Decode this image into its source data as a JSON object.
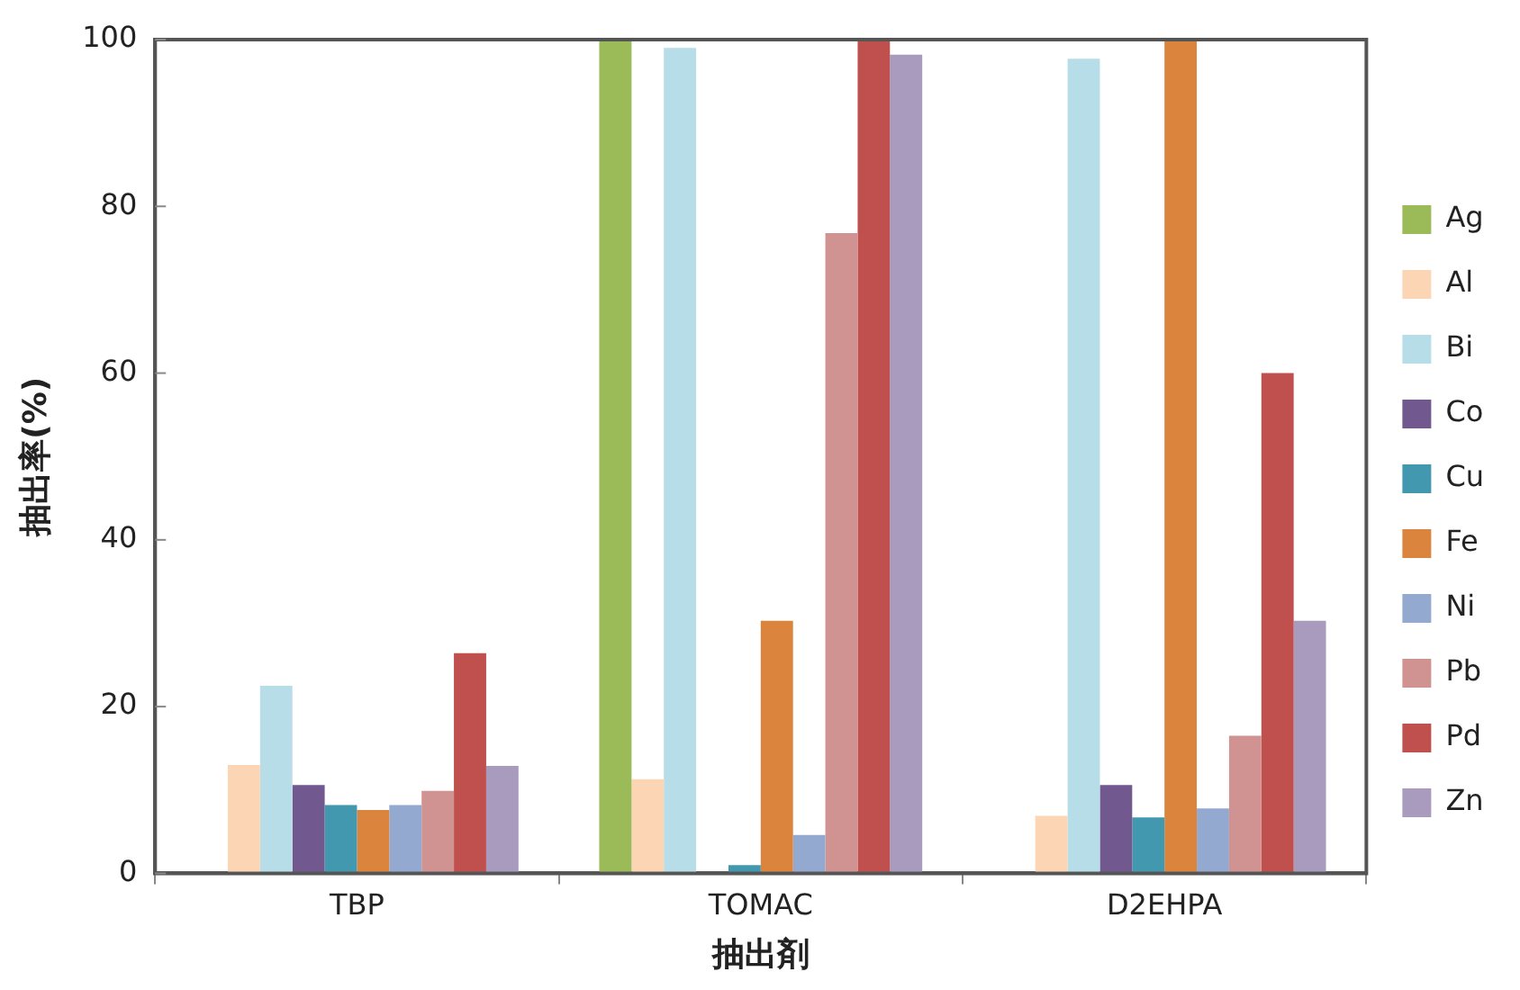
{
  "chart_data": {
    "type": "bar",
    "xlabel": "抽出剤",
    "ylabel": "抽出率(%)",
    "categories": [
      "TBP",
      "TOMAC",
      "D2EHPA"
    ],
    "series": [
      {
        "name": "Ag",
        "color": "#9bbb59",
        "values": [
          0,
          100,
          0
        ]
      },
      {
        "name": "Al",
        "color": "#fcd5b5",
        "values": [
          13,
          11.3,
          6.9
        ]
      },
      {
        "name": "Bi",
        "color": "#b7dde8",
        "values": [
          22.5,
          99,
          97.7
        ]
      },
      {
        "name": "Co",
        "color": "#71588f",
        "values": [
          10.6,
          0,
          10.6
        ]
      },
      {
        "name": "Cu",
        "color": "#4198af",
        "values": [
          8.2,
          1,
          6.7
        ]
      },
      {
        "name": "Fe",
        "color": "#db843d",
        "values": [
          7.6,
          30.3,
          100
        ]
      },
      {
        "name": "Ni",
        "color": "#93a9cf",
        "values": [
          8.2,
          4.6,
          7.8
        ]
      },
      {
        "name": "Pb",
        "color": "#d19392",
        "values": [
          9.9,
          76.8,
          16.5
        ]
      },
      {
        "name": "Pd",
        "color": "#c0504d",
        "values": [
          26.4,
          100,
          60
        ]
      },
      {
        "name": "Zn",
        "color": "#a99bbd",
        "values": [
          12.9,
          98.2,
          30.3
        ]
      }
    ],
    "ylim": [
      0,
      100
    ],
    "yticks": [
      0,
      20,
      40,
      60,
      80,
      100
    ],
    "grid": false,
    "legend": "right"
  }
}
